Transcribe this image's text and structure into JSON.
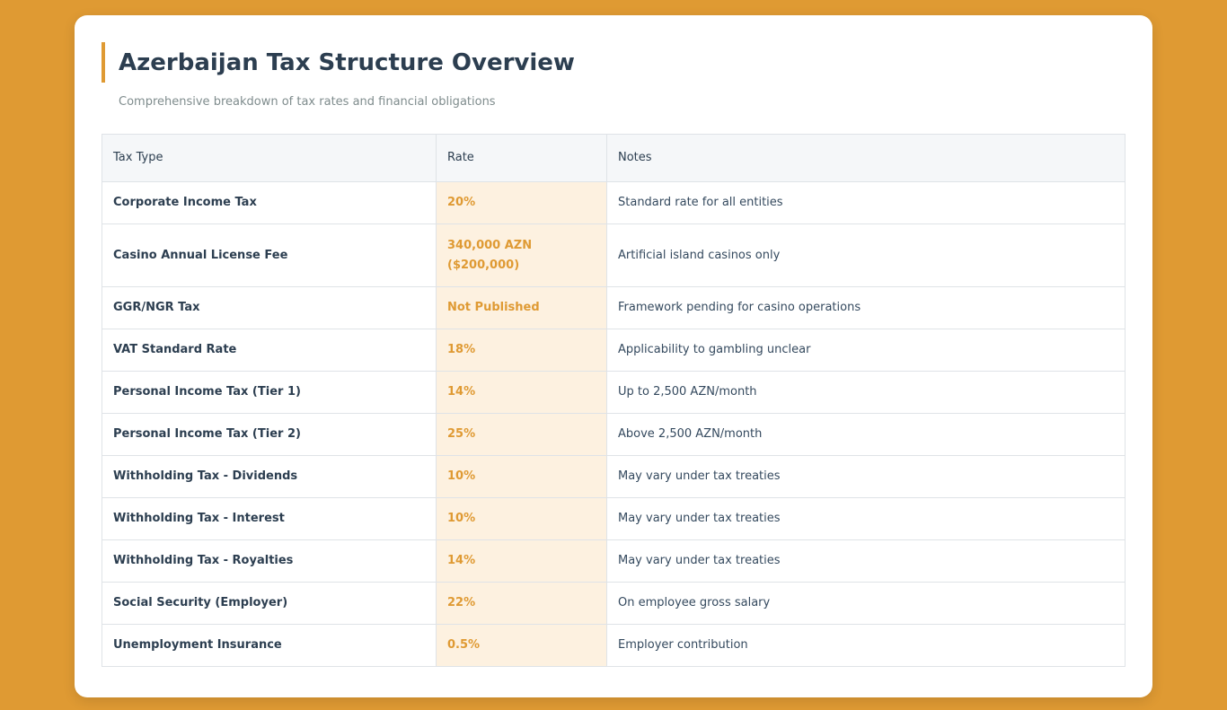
{
  "page": {
    "title": "Azerbaijan Tax Structure Overview",
    "subtitle": "Comprehensive breakdown of tax rates and financial obligations",
    "accent_color": "#df9a33",
    "background_color": "#df9a33"
  },
  "table": {
    "headers": [
      "Tax Type",
      "Rate",
      "Notes"
    ],
    "rows": [
      {
        "type": "Corporate Income Tax",
        "rate": "20%",
        "notes": "Standard rate for all entities"
      },
      {
        "type": "Casino Annual License Fee",
        "rate": "340,000 AZN ($200,000)",
        "notes": "Artificial island casinos only"
      },
      {
        "type": "GGR/NGR Tax",
        "rate": "Not Published",
        "notes": "Framework pending for casino operations"
      },
      {
        "type": "VAT Standard Rate",
        "rate": "18%",
        "notes": "Applicability to gambling unclear"
      },
      {
        "type": "Personal Income Tax (Tier 1)",
        "rate": "14%",
        "notes": "Up to 2,500 AZN/month"
      },
      {
        "type": "Personal Income Tax (Tier 2)",
        "rate": "25%",
        "notes": "Above 2,500 AZN/month"
      },
      {
        "type": "Withholding Tax - Dividends",
        "rate": "10%",
        "notes": "May vary under tax treaties"
      },
      {
        "type": "Withholding Tax - Interest",
        "rate": "10%",
        "notes": "May vary under tax treaties"
      },
      {
        "type": "Withholding Tax - Royalties",
        "rate": "14%",
        "notes": "May vary under tax treaties"
      },
      {
        "type": "Social Security (Employer)",
        "rate": "22%",
        "notes": "On employee gross salary"
      },
      {
        "type": "Unemployment Insurance",
        "rate": "0.5%",
        "notes": "Employer contribution"
      }
    ]
  }
}
